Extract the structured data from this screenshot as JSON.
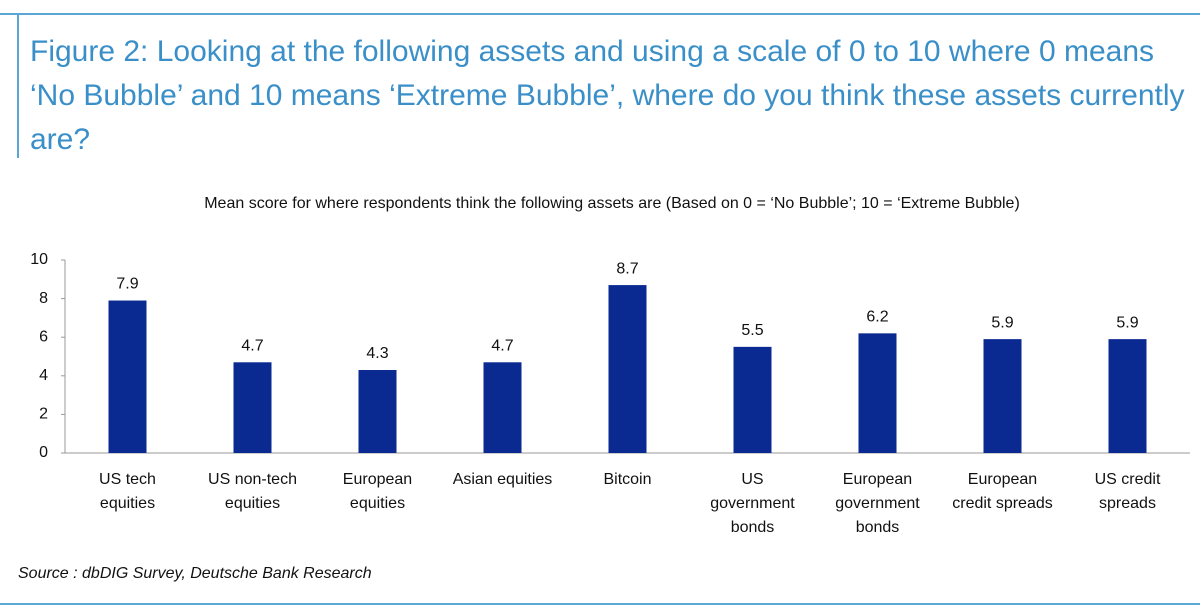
{
  "chart_data": {
    "type": "bar",
    "title": "Figure 2: Looking at the following assets and using a scale of 0 to 10 where 0 means ‘No Bubble’ and 10 means ‘Extreme Bubble’, where do you think these assets currently are?",
    "subtitle": "Mean score for where respondents think the following assets are (Based on 0 = ‘No Bubble’; 10 = ‘Extreme Bubble)",
    "categories": [
      "US tech equities",
      "US non-tech equities",
      "European equities",
      "Asian equities",
      "Bitcoin",
      "US government bonds",
      "European government bonds",
      "European credit spreads",
      "US credit spreads"
    ],
    "values": [
      7.9,
      4.7,
      4.3,
      4.7,
      8.7,
      5.5,
      6.2,
      5.9,
      5.9
    ],
    "color": "#0a2a92",
    "ylim": [
      0,
      10
    ],
    "yticks": [
      0,
      2,
      4,
      6,
      8,
      10
    ],
    "source": "Source : dbDIG Survey, Deutsche Bank Research"
  }
}
